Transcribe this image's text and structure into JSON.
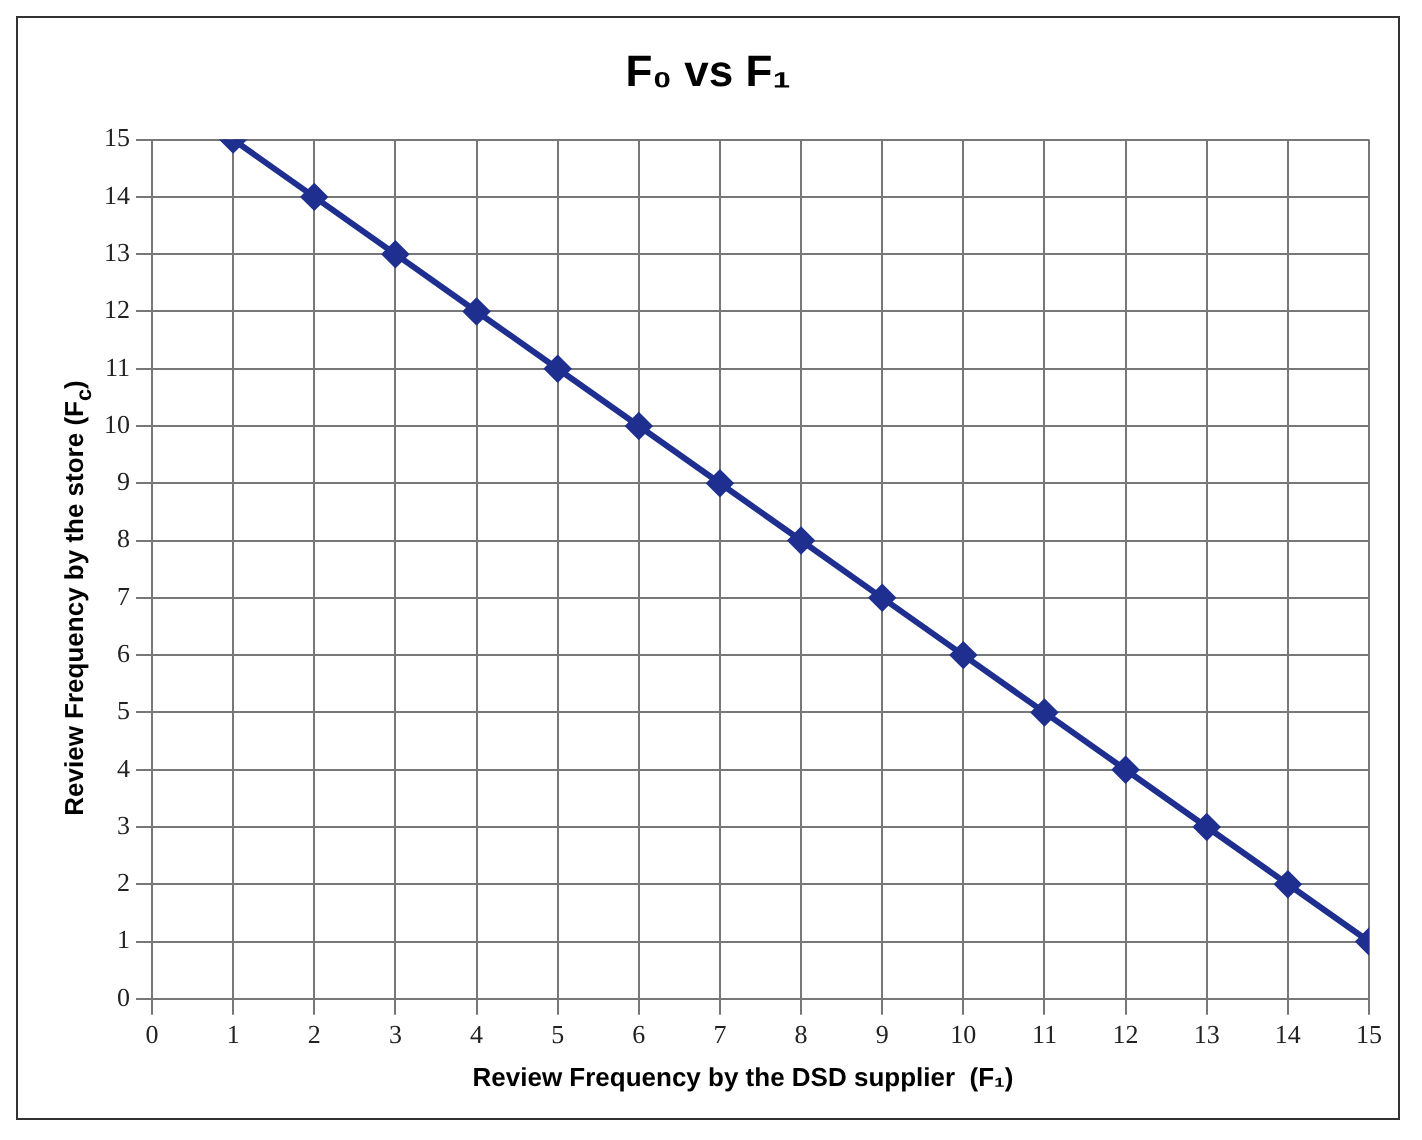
{
  "chart_data": {
    "type": "line",
    "title": "F₀ vs F₁",
    "xlabel": "Review Frequency by the DSD supplier  (F₁)",
    "ylabel": "Review Frequency by the store (F$_{c}$)",
    "x": [
      1,
      2,
      3,
      4,
      5,
      6,
      7,
      8,
      9,
      10,
      11,
      12,
      13,
      14,
      15
    ],
    "series": [
      {
        "color": "#1f2f8f",
        "values": [
          15,
          14,
          13,
          12,
          11,
          10,
          9,
          8,
          7,
          6,
          5,
          4,
          3,
          2,
          1
        ]
      }
    ],
    "xlim": [
      0,
      15
    ],
    "xticks": [
      0,
      1,
      2,
      3,
      4,
      5,
      6,
      7,
      8,
      9,
      10,
      11,
      12,
      13,
      14,
      15
    ],
    "ylim": [
      0,
      15
    ],
    "yticks": [
      0,
      1,
      2,
      3,
      4,
      5,
      6,
      7,
      8,
      9,
      10,
      11,
      12,
      13,
      14,
      15
    ],
    "grid": true,
    "legend": false,
    "marker": "diamond",
    "line_style": "solid"
  }
}
